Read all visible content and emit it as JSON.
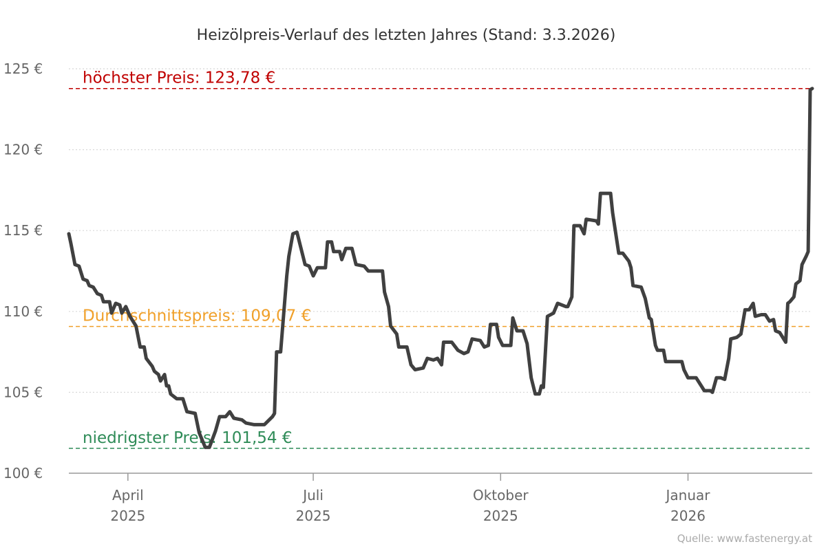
{
  "chart_data": {
    "type": "line",
    "title": "Heizölpreis-Verlauf des letzten Jahres (Stand: 3.3.2026)",
    "xlabel": "",
    "ylabel": "",
    "xlim": [
      "2025-03-03",
      "2026-03-03"
    ],
    "ylim": [
      100,
      125
    ],
    "grid": true,
    "y_ticks": [
      {
        "value": 100,
        "label": "100 €"
      },
      {
        "value": 105,
        "label": "105 €"
      },
      {
        "value": 110,
        "label": "110 €"
      },
      {
        "value": 115,
        "label": "115 €"
      },
      {
        "value": 120,
        "label": "120 €"
      },
      {
        "value": 125,
        "label": "125 €"
      }
    ],
    "x_ticks": [
      {
        "date": "2025-04-01",
        "month": "April",
        "year": "2025"
      },
      {
        "date": "2025-07-01",
        "month": "Juli",
        "year": "2025"
      },
      {
        "date": "2025-10-01",
        "month": "Oktober",
        "year": "2025"
      },
      {
        "date": "2026-01-01",
        "month": "Januar",
        "year": "2026"
      }
    ],
    "reference_lines": [
      {
        "key": "max",
        "value": 123.78,
        "label": "höchster Preis: 123,78 €",
        "color": "#c00000"
      },
      {
        "key": "avg",
        "value": 109.07,
        "label": "Durchschnittspreis: 109,07 €",
        "color": "#f0a02a"
      },
      {
        "key": "min",
        "value": 101.54,
        "label": "niedrigster Preis: 101,54 €",
        "color": "#2e8b57"
      }
    ],
    "series": [
      {
        "color": "#404040",
        "x": [
          "2025-03-03",
          "2025-03-04",
          "2025-03-06",
          "2025-03-08",
          "2025-03-10",
          "2025-03-12",
          "2025-03-13",
          "2025-03-15",
          "2025-03-17",
          "2025-03-19",
          "2025-03-20",
          "2025-03-23",
          "2025-03-24",
          "2025-03-26",
          "2025-03-28",
          "2025-03-29",
          "2025-03-31",
          "2025-04-02",
          "2025-04-05",
          "2025-04-07",
          "2025-04-09",
          "2025-04-10",
          "2025-04-13",
          "2025-04-14",
          "2025-04-16",
          "2025-04-17",
          "2025-04-19",
          "2025-04-20",
          "2025-04-21",
          "2025-04-22",
          "2025-04-25",
          "2025-04-28",
          "2025-04-30",
          "2025-05-04",
          "2025-05-06",
          "2025-05-09",
          "2025-05-11",
          "2025-05-14",
          "2025-05-16",
          "2025-05-19",
          "2025-05-21",
          "2025-05-23",
          "2025-05-27",
          "2025-05-29",
          "2025-06-02",
          "2025-06-07",
          "2025-06-11",
          "2025-06-12",
          "2025-06-13",
          "2025-06-15",
          "2025-06-18",
          "2025-06-19",
          "2025-06-21",
          "2025-06-23",
          "2025-06-25",
          "2025-06-27",
          "2025-06-29",
          "2025-07-01",
          "2025-07-03",
          "2025-07-07",
          "2025-07-08",
          "2025-07-10",
          "2025-07-11",
          "2025-07-14",
          "2025-07-15",
          "2025-07-17",
          "2025-07-20",
          "2025-07-22",
          "2025-07-26",
          "2025-07-28",
          "2025-07-31",
          "2025-08-04",
          "2025-08-05",
          "2025-08-07",
          "2025-08-08",
          "2025-08-11",
          "2025-08-12",
          "2025-08-16",
          "2025-08-18",
          "2025-08-20",
          "2025-08-24",
          "2025-08-26",
          "2025-08-29",
          "2025-08-31",
          "2025-09-02",
          "2025-09-03",
          "2025-09-07",
          "2025-09-10",
          "2025-09-13",
          "2025-09-15",
          "2025-09-17",
          "2025-09-21",
          "2025-09-23",
          "2025-09-25",
          "2025-09-26",
          "2025-09-29",
          "2025-09-30",
          "2025-10-02",
          "2025-10-06",
          "2025-10-07",
          "2025-10-09",
          "2025-10-12",
          "2025-10-14",
          "2025-10-16",
          "2025-10-18",
          "2025-10-20",
          "2025-10-21",
          "2025-10-22",
          "2025-10-24",
          "2025-10-27",
          "2025-10-29",
          "2025-11-02",
          "2025-11-03",
          "2025-11-05",
          "2025-11-06",
          "2025-11-09",
          "2025-11-11",
          "2025-11-12",
          "2025-11-17",
          "2025-11-18",
          "2025-11-19",
          "2025-11-24",
          "2025-11-25",
          "2025-11-28",
          "2025-11-30",
          "2025-12-03",
          "2025-12-04",
          "2025-12-05",
          "2025-12-09",
          "2025-12-11",
          "2025-12-13",
          "2025-12-14",
          "2025-12-16",
          "2025-12-17",
          "2025-12-20",
          "2025-12-21",
          "2025-12-25",
          "2025-12-29",
          "2025-12-30",
          "2026-01-01",
          "2026-01-05",
          "2026-01-07",
          "2026-01-09",
          "2026-01-12",
          "2026-01-13",
          "2026-01-15",
          "2026-01-17",
          "2026-01-19",
          "2026-01-21",
          "2026-01-22",
          "2026-01-25",
          "2026-01-27",
          "2026-01-29",
          "2026-01-31",
          "2026-02-02",
          "2026-02-03",
          "2026-02-06",
          "2026-02-08",
          "2026-02-10",
          "2026-02-12",
          "2026-02-13",
          "2026-02-15",
          "2026-02-18",
          "2026-02-19",
          "2026-02-20",
          "2026-02-22",
          "2026-02-23",
          "2026-02-25",
          "2026-02-26",
          "2026-02-28",
          "2026-03-01",
          "2026-03-02",
          "2026-03-03"
        ],
        "y": [
          114.8,
          114.2,
          112.9,
          112.8,
          112.0,
          111.9,
          111.6,
          111.5,
          111.1,
          111.0,
          110.6,
          110.6,
          109.9,
          110.5,
          110.4,
          109.9,
          110.3,
          109.7,
          109.1,
          107.8,
          107.8,
          107.1,
          106.6,
          106.3,
          106.1,
          105.7,
          106.1,
          105.4,
          105.4,
          104.9,
          104.6,
          104.6,
          103.8,
          103.7,
          102.5,
          101.6,
          101.6,
          102.6,
          103.5,
          103.5,
          103.8,
          103.4,
          103.3,
          103.1,
          103.0,
          103.0,
          103.5,
          103.7,
          107.5,
          107.5,
          112.2,
          113.4,
          114.8,
          114.9,
          113.9,
          112.9,
          112.8,
          112.2,
          112.7,
          112.7,
          114.3,
          114.3,
          113.7,
          113.7,
          113.2,
          113.9,
          113.9,
          112.9,
          112.8,
          112.5,
          112.5,
          112.5,
          111.2,
          110.3,
          109.1,
          108.6,
          107.8,
          107.8,
          106.7,
          106.4,
          106.5,
          107.1,
          107.0,
          107.1,
          106.7,
          108.1,
          108.1,
          107.6,
          107.4,
          107.5,
          108.3,
          108.2,
          107.8,
          107.9,
          109.2,
          109.2,
          108.4,
          107.9,
          107.9,
          109.6,
          108.8,
          108.8,
          108.0,
          105.9,
          104.9,
          104.9,
          105.4,
          105.3,
          109.7,
          109.9,
          110.5,
          110.3,
          110.3,
          110.9,
          115.3,
          115.3,
          114.8,
          115.7,
          115.6,
          115.4,
          117.3,
          117.3,
          116.1,
          113.6,
          113.6,
          113.1,
          112.7,
          111.6,
          111.5,
          110.8,
          109.6,
          109.5,
          107.9,
          107.6,
          107.6,
          106.9,
          106.9,
          106.9,
          106.4,
          105.9,
          105.9,
          105.5,
          105.1,
          105.1,
          105.0,
          105.9,
          105.9,
          105.8,
          107.1,
          108.3,
          108.4,
          108.6,
          110.1,
          110.1,
          110.5,
          109.7,
          109.8,
          109.8,
          109.4,
          109.5,
          108.8,
          108.7,
          108.1,
          110.5,
          110.6,
          110.9,
          111.7,
          111.9,
          112.9,
          113.4,
          113.7,
          123.7,
          123.78
        ]
      }
    ],
    "source": "Quelle: www.fastenergy.at"
  }
}
